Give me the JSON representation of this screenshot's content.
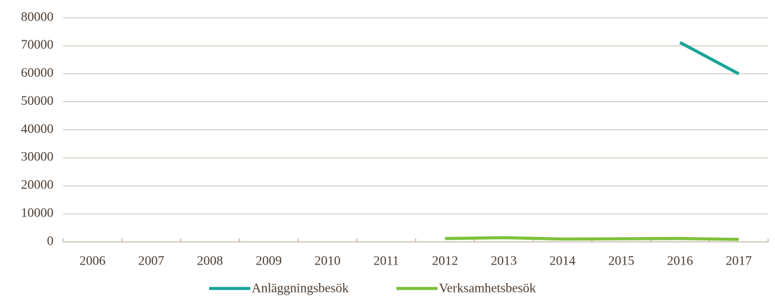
{
  "chart_data": {
    "type": "line",
    "categories": [
      "2006",
      "2007",
      "2008",
      "2009",
      "2010",
      "2011",
      "2012",
      "2013",
      "2014",
      "2015",
      "2016",
      "2017"
    ],
    "series": [
      {
        "name": "Anläggningsbesök",
        "color": "#1aa39a",
        "values": [
          null,
          null,
          null,
          null,
          null,
          null,
          null,
          null,
          null,
          null,
          71200,
          60000
        ]
      },
      {
        "name": "Verksamhetsbesök",
        "color": "#7dc13a",
        "values": [
          null,
          null,
          null,
          null,
          null,
          null,
          1200,
          1500,
          1000,
          1100,
          1200,
          900
        ]
      }
    ],
    "ylim": [
      0,
      80000
    ],
    "yticks": [
      0,
      10000,
      20000,
      30000,
      40000,
      50000,
      60000,
      70000,
      80000
    ],
    "grid": true,
    "legend": "bottom"
  }
}
